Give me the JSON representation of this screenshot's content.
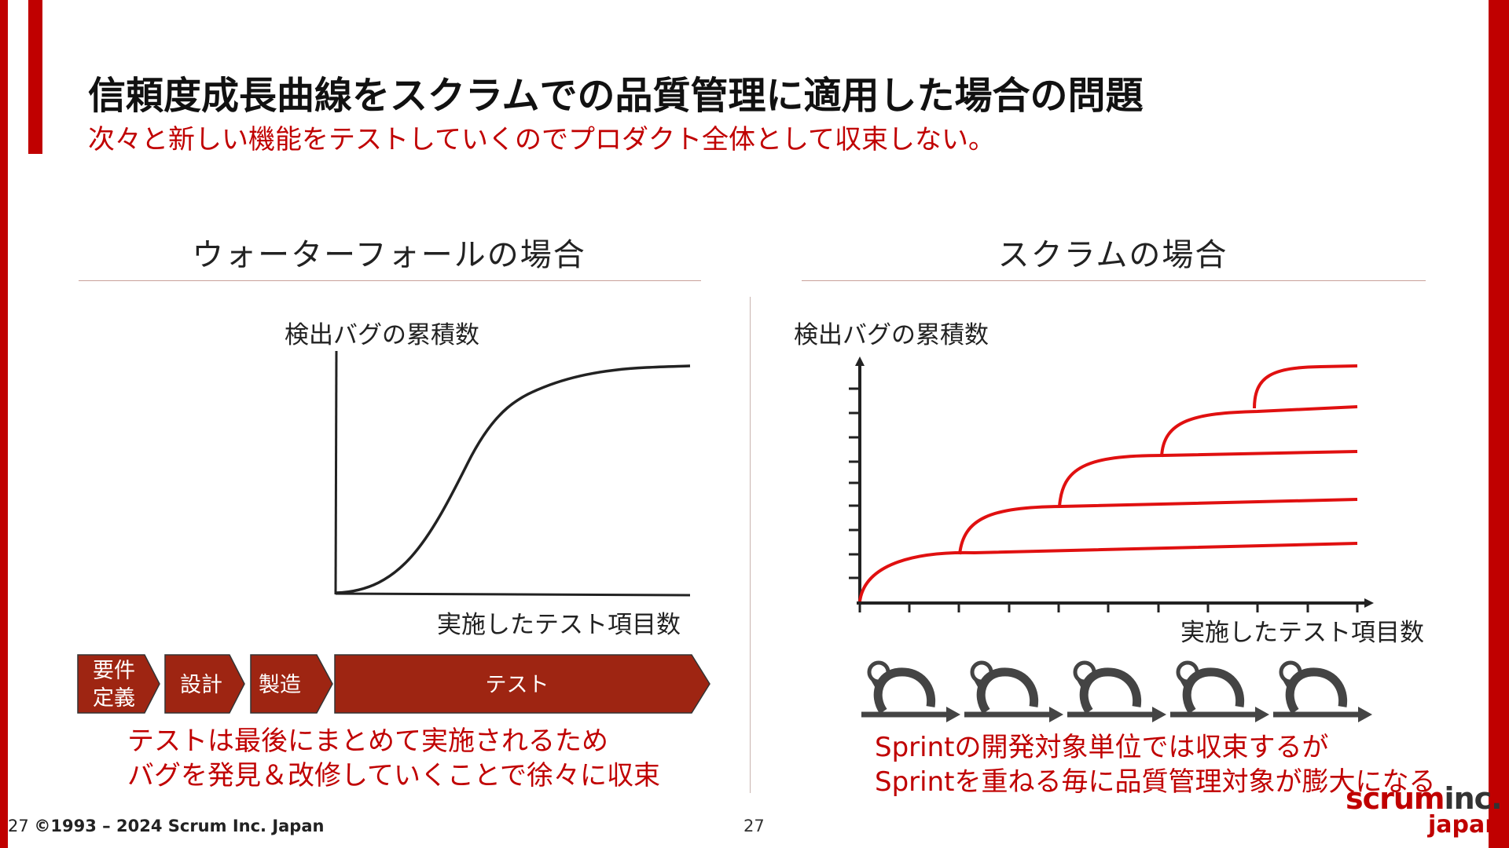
{
  "title": "信頼度成長曲線をスクラムでの品質管理に適用した場合の問題",
  "subtitle": "次々と新しい機能をテストしていくのでプロダクト全体として収束しない。",
  "waterfall": {
    "heading": "ウォーターフォールの場合",
    "y_label": "検出バグの累積数",
    "x_label": "実施したテスト項目数",
    "phases": [
      {
        "line1": "要件",
        "line2": "定義"
      },
      {
        "line1": "設計",
        "line2": ""
      },
      {
        "line1": "製造",
        "line2": ""
      },
      {
        "line1": "テスト",
        "line2": ""
      }
    ],
    "note_line1": "テストは最後にまとめて実施されるため",
    "note_line2": "バグを発見＆改修していくことで徐々に収束"
  },
  "scrum": {
    "heading": "スクラムの場合",
    "y_label": "検出バグの累積数",
    "x_label": "実施したテスト項目数",
    "sprint_count": 5,
    "note_line1": "Sprintの開発対象単位では収束するが",
    "note_line2": "Sprintを重ねる毎に品質管理対象が膨大になる"
  },
  "footer": {
    "page_prefix": "27",
    "copyright": "©1993 – 2024 Scrum Inc. Japan",
    "page_number": "27"
  },
  "logo": {
    "part1": "scrum",
    "part2": "inc.",
    "part3": "japan"
  },
  "colors": {
    "accent": "#c00000",
    "phase_fill": "#9e2512",
    "curve": "#e01010",
    "icon": "#444444"
  }
}
